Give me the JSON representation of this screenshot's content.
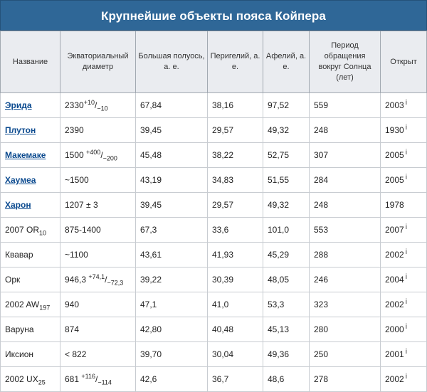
{
  "title": "Крупнейшие объекты пояса Койпера",
  "headers": {
    "name": "Название",
    "diameter": "Экваториальный диаметр",
    "semimajor": "Большая полуось, а. е.",
    "perihelion": "Перигелий, а. е.",
    "aphelion": "Афелий, а. е.",
    "period": "Период обращения вокруг Солнца (лет)",
    "discovered": "Открыт"
  },
  "rows": [
    {
      "name": "Эрида",
      "link": true,
      "d": "2330",
      "d_sup": "+10",
      "d_sub": "−10",
      "a": "67,84",
      "q": "38,16",
      "Q": "97,52",
      "p": "559",
      "y": "2003",
      "info": "i"
    },
    {
      "name": "Плутон",
      "link": true,
      "d": "2390",
      "a": "39,45",
      "q": "29,57",
      "Q": "49,32",
      "p": "248",
      "y": "1930",
      "info": "i"
    },
    {
      "name": "Макемаке",
      "link": true,
      "d": "1500 ",
      "d_sup": "+400",
      "d_sub": "−200",
      "a": "45,48",
      "q": "38,22",
      "Q": "52,75",
      "p": "307",
      "y": "2005",
      "info": "i"
    },
    {
      "name": "Хаумеа",
      "link": true,
      "d": "~1500",
      "a": "43,19",
      "q": "34,83",
      "Q": "51,55",
      "p": "284",
      "y": "2005",
      "info": "i"
    },
    {
      "name": "Харон",
      "link": true,
      "d": "1207 ± 3",
      "a": "39,45",
      "q": "29,57",
      "Q": "49,32",
      "p": "248",
      "y": "1978"
    },
    {
      "name": "2007 OR",
      "name_sub": "10",
      "link": false,
      "d": "875-1400",
      "a": "67,3",
      "q": "33,6",
      "Q": "101,0",
      "p": "553",
      "y": "2007",
      "info": "i"
    },
    {
      "name": "Квавар",
      "link": false,
      "d": "~1100",
      "a": "43,61",
      "q": "41,93",
      "Q": "45,29",
      "p": "288",
      "y": "2002",
      "info": "i"
    },
    {
      "name": "Орк",
      "link": false,
      "d": "946,3 ",
      "d_sup": "+74,1",
      "d_sub": "−72,3",
      "a": "39,22",
      "q": "30,39",
      "Q": "48,05",
      "p": "246",
      "y": "2004",
      "info": "i"
    },
    {
      "name": "2002 AW",
      "name_sub": "197",
      "link": false,
      "d": "940",
      "a": "47,1",
      "q": "41,0",
      "Q": "53,3",
      "p": "323",
      "y": "2002",
      "info": "i"
    },
    {
      "name": "Варуна",
      "link": false,
      "d": "874",
      "a": "42,80",
      "q": "40,48",
      "Q": "45,13",
      "p": "280",
      "y": "2000",
      "info": "i"
    },
    {
      "name": "Иксион",
      "link": false,
      "d": "< 822",
      "a": "39,70",
      "q": "30,04",
      "Q": "49,36",
      "p": "250",
      "y": "2001",
      "info": "i"
    },
    {
      "name": "2002 UX",
      "name_sub": "25",
      "link": false,
      "d": "681 ",
      "d_sup": "+116",
      "d_sub": "−114",
      "a": "42,6",
      "q": "36,7",
      "Q": "48,6",
      "p": "278",
      "y": "2002",
      "info": "i"
    }
  ]
}
